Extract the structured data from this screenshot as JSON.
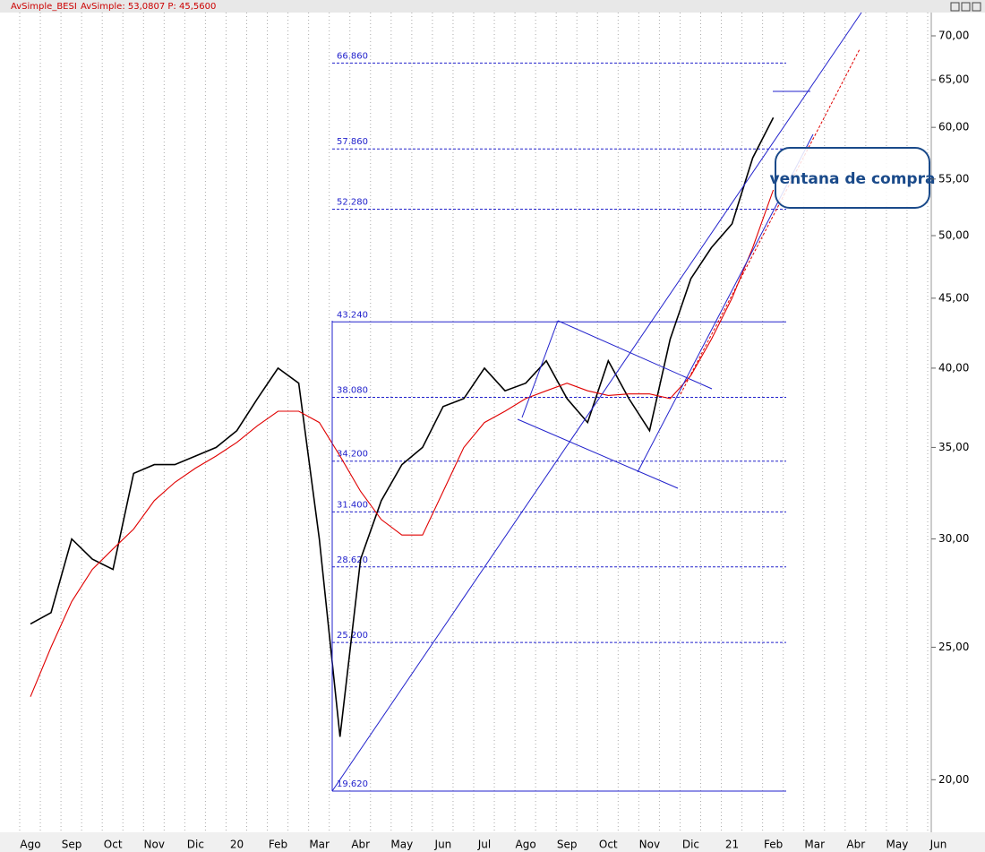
{
  "chart_data": {
    "type": "line",
    "title": "AvSimple_BESI",
    "subtitle": "AvSimple: 53,0807  P: 45,5600",
    "annotation": "ventana de compra",
    "log_scale": true,
    "grid": true,
    "categories": [
      "Ago",
      null,
      "Sep",
      null,
      "Oct",
      null,
      "Nov",
      null,
      "Dic",
      null,
      "20",
      null,
      "Feb",
      null,
      "Mar",
      null,
      "Abr",
      null,
      "May",
      null,
      "Jun",
      null,
      "Jul",
      null,
      "Ago",
      null,
      "Sep",
      null,
      "Oct",
      null,
      "Nov",
      null,
      "Dic",
      null,
      "21",
      null,
      "Feb",
      null,
      "Mar",
      null,
      "Abr",
      null,
      "May",
      null,
      "Jun"
    ],
    "series": [
      {
        "color": "#000000",
        "values": [
          26,
          26.5,
          30,
          29,
          28.5,
          33.5,
          34,
          34,
          34.5,
          35,
          36,
          38,
          40,
          39,
          30,
          21.5,
          29,
          32,
          34,
          35,
          37.5,
          38,
          40,
          38.5,
          39,
          40.5,
          38,
          36.5,
          40.5,
          38,
          36,
          42,
          46.5,
          49,
          51,
          57,
          61,
          null,
          null,
          null,
          null,
          null,
          null,
          null,
          null
        ]
      },
      {
        "color": "#e00000",
        "values": [
          23,
          25,
          27,
          28.5,
          29.5,
          30.5,
          32,
          33,
          33.8,
          34.5,
          35.3,
          36.3,
          37.2,
          37.2,
          36.5,
          34.5,
          32.5,
          31,
          30.2,
          30.2,
          32.5,
          35,
          36.5,
          37.2,
          38,
          38.5,
          39,
          38.5,
          38.2,
          38.3,
          38.3,
          38,
          39.5,
          42,
          45,
          49,
          54,
          null,
          null,
          null,
          null,
          null,
          null,
          null,
          null
        ]
      }
    ],
    "fib_levels": [
      {
        "value": 66.86,
        "label": "66.860"
      },
      {
        "value": 57.86,
        "label": "57.860"
      },
      {
        "value": 52.28,
        "label": "52.280"
      },
      {
        "value": 43.24,
        "label": "43.240"
      },
      {
        "value": 38.08,
        "label": "38.080"
      },
      {
        "value": 34.2,
        "label": "34.200"
      },
      {
        "value": 31.4,
        "label": "31.400"
      },
      {
        "value": 28.62,
        "label": "28.620"
      },
      {
        "value": 25.2,
        "label": "25.200"
      },
      {
        "value": 19.62,
        "label": "19.620"
      }
    ],
    "fib_color": "#2222cc",
    "ylim": [
      18.5,
      72.8
    ],
    "yticks": [
      {
        "value": 20,
        "label": "20,00"
      },
      {
        "value": 25,
        "label": "25,00"
      },
      {
        "value": 30,
        "label": "30,00"
      },
      {
        "value": 35,
        "label": "35,00"
      },
      {
        "value": 40,
        "label": "40,00"
      },
      {
        "value": 45,
        "label": "45,00"
      },
      {
        "value": 50,
        "label": "50,00"
      },
      {
        "value": 55,
        "label": "55,00"
      },
      {
        "value": 60,
        "label": "60,00"
      },
      {
        "value": 65,
        "label": "65,00"
      },
      {
        "value": 70,
        "label": "70,00"
      }
    ]
  }
}
